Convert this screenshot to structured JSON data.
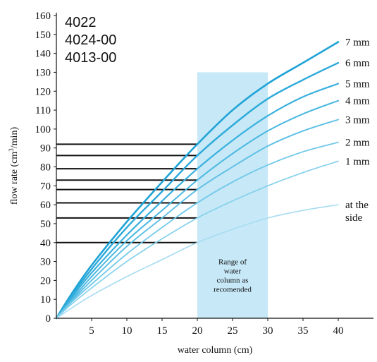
{
  "models": [
    "4022",
    "4024-00",
    "4013-00"
  ],
  "chart_data": {
    "type": "line",
    "xlabel": "water column (cm)",
    "ylabel_main": "flow rate (cm",
    "ylabel_sup": "3",
    "ylabel_tail": "/min)",
    "xlim": [
      0,
      45
    ],
    "ylim": [
      0,
      160
    ],
    "xticks": [
      5,
      10,
      15,
      20,
      25,
      30,
      35,
      40
    ],
    "yticks": [
      0,
      10,
      20,
      30,
      40,
      50,
      60,
      70,
      80,
      90,
      100,
      110,
      120,
      130,
      140,
      150,
      160
    ],
    "recommended_range": {
      "x_from": 20,
      "x_to": 30,
      "y_top": 130,
      "label_lines": [
        "Range of",
        "water",
        "column as",
        "recomended"
      ]
    },
    "reference_lines": [
      92,
      86,
      79,
      73,
      68,
      61,
      53,
      40
    ],
    "x": [
      0,
      2,
      5,
      10,
      15,
      20,
      25,
      30,
      35,
      40
    ],
    "series": [
      {
        "name": "7 mm",
        "color": "#1fa3d6",
        "width": 2.6,
        "values": [
          0,
          12,
          28,
          51,
          72,
          92,
          110,
          124,
          135,
          146
        ]
      },
      {
        "name": "6 mm",
        "color": "#2aa9da",
        "width": 2.4,
        "values": [
          0,
          11,
          26,
          48,
          67,
          86,
          102,
          116,
          126,
          135
        ]
      },
      {
        "name": "5 mm",
        "color": "#39b0dd",
        "width": 2.2,
        "values": [
          0,
          10,
          24,
          44,
          62,
          79,
          94,
          107,
          117,
          124
        ]
      },
      {
        "name": "4 mm",
        "color": "#4ab8e1",
        "width": 2.0,
        "values": [
          0,
          9,
          22,
          41,
          57,
          73,
          87,
          99,
          108,
          115
        ]
      },
      {
        "name": "3 mm",
        "color": "#5dc0e5",
        "width": 1.9,
        "values": [
          0,
          8.5,
          20,
          38,
          53,
          68,
          80,
          91,
          99,
          105
        ]
      },
      {
        "name": "2 mm",
        "color": "#70c8e9",
        "width": 1.8,
        "values": [
          0,
          8,
          18,
          34,
          48,
          61,
          72,
          81,
          88,
          93
        ]
      },
      {
        "name": "1 mm",
        "color": "#86d1ec",
        "width": 1.7,
        "values": [
          0,
          7,
          16,
          30,
          42,
          53,
          62,
          70,
          77,
          83
        ]
      },
      {
        "name": "at the side",
        "color": "#a7dcf1",
        "width": 1.6,
        "values": [
          0,
          5,
          12,
          22,
          31,
          40,
          47,
          53,
          57,
          60
        ]
      }
    ]
  }
}
